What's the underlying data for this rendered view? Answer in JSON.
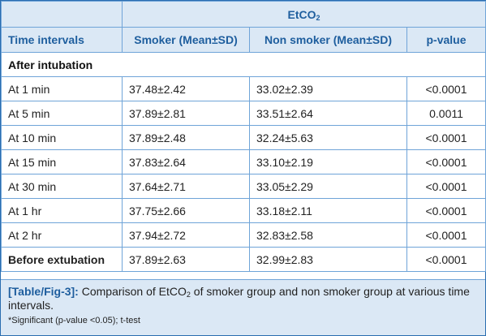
{
  "header": {
    "group_label": "EtCO",
    "group_label_sub": "2",
    "col_time": "Time intervals",
    "col_smoker": "Smoker (Mean±SD)",
    "col_nonsmoker": "Non smoker (Mean±SD)",
    "col_p": "p-value"
  },
  "section_label": "After intubation",
  "rows": [
    {
      "interval": "At 1 min",
      "smoker": "37.48±2.42",
      "nonsmoker": "33.02±2.39",
      "p": "<0.0001"
    },
    {
      "interval": "At 5 min",
      "smoker": "37.89±2.81",
      "nonsmoker": "33.51±2.64",
      "p": "0.0011"
    },
    {
      "interval": "At 10 min",
      "smoker": "37.89±2.48",
      "nonsmoker": "32.24±5.63",
      "p": "<0.0001"
    },
    {
      "interval": "At 15 min",
      "smoker": "37.83±2.64",
      "nonsmoker": "33.10±2.19",
      "p": "<0.0001"
    },
    {
      "interval": "At 30 min",
      "smoker": "37.64±2.71",
      "nonsmoker": "33.05±2.29",
      "p": "<0.0001"
    },
    {
      "interval": "At 1 hr",
      "smoker": "37.75±2.66",
      "nonsmoker": "33.18±2.11",
      "p": "<0.0001"
    },
    {
      "interval": "At 2 hr",
      "smoker": "37.94±2.72",
      "nonsmoker": "32.83±2.58",
      "p": "<0.0001"
    },
    {
      "interval": "Before extubation",
      "smoker": "37.89±2.63",
      "nonsmoker": "32.99±2.83",
      "p": "<0.0001"
    }
  ],
  "caption": {
    "ref": "[Table/Fig-3]:",
    "text_before_sub": " Comparison of EtCO",
    "sub": "2",
    "text_after_sub": " of smoker group and non smoker group at various time intervals.",
    "note": "*Significant (p-value <0.05); t-test"
  }
}
